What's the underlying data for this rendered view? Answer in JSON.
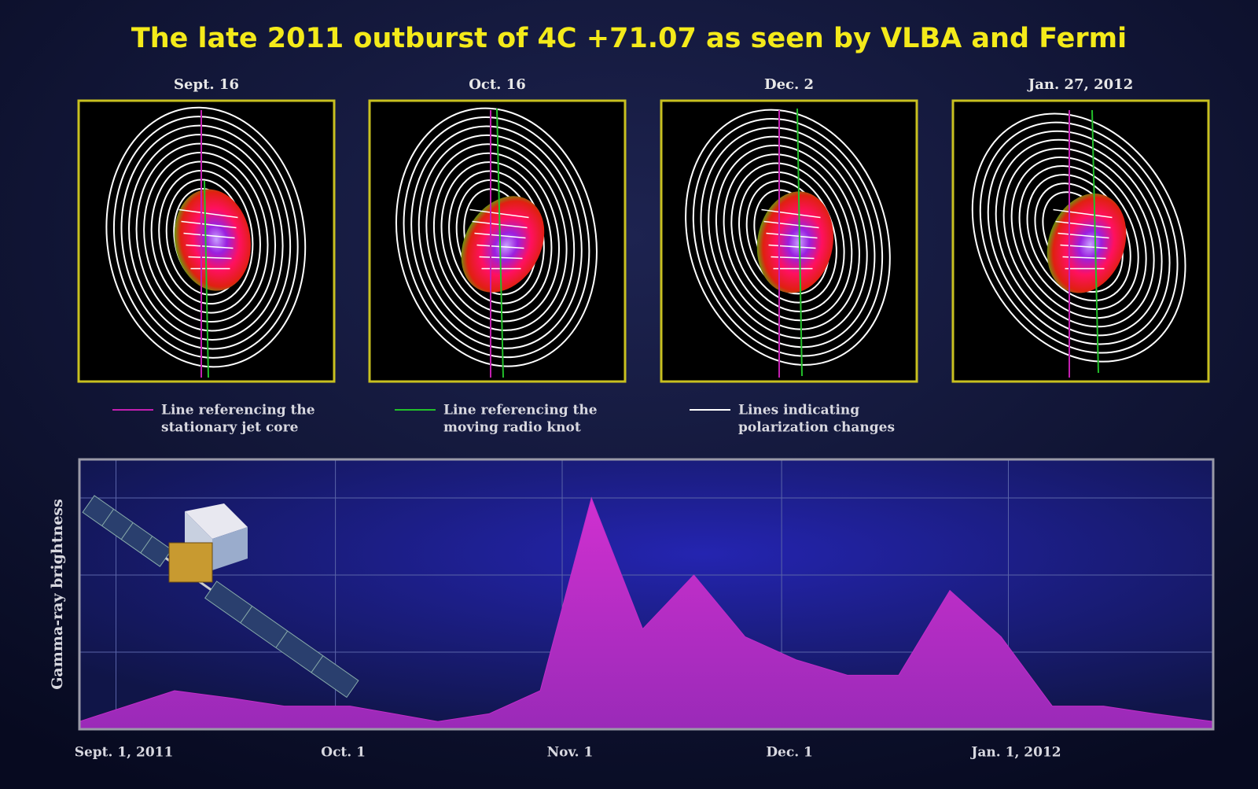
{
  "title": "The late 2011 outburst of 4C +71.07 as seen by VLBA and Fermi",
  "panels": [
    {
      "label": "Sept. 16"
    },
    {
      "label": "Oct. 16"
    },
    {
      "label": "Dec. 2"
    },
    {
      "label": "Jan. 27, 2012"
    }
  ],
  "legend": [
    {
      "lines": [
        "Line referencing the",
        "stationary jet core"
      ],
      "color": "#c21fb0"
    },
    {
      "lines": [
        "Line referencing the",
        "moving radio knot"
      ],
      "color": "#22c02a"
    },
    {
      "lines": [
        "Lines indicating",
        "polarization changes"
      ],
      "color": "#ffffff"
    }
  ],
  "chart_data": {
    "type": "area",
    "y_label": "Gamma-ray brightness",
    "color": "#c22cc8",
    "x": [
      -5,
      8,
      16,
      23,
      32,
      44,
      51,
      58,
      65,
      72,
      79,
      86,
      93,
      100,
      107,
      114,
      121,
      128,
      135,
      142,
      150
    ],
    "values": [
      0.1,
      0.5,
      0.4,
      0.3,
      0.3,
      0.1,
      0.2,
      0.5,
      3.0,
      1.3,
      2.0,
      1.2,
      0.9,
      0.7,
      0.7,
      1.8,
      1.2,
      0.3,
      0.3,
      0.2,
      0.1
    ],
    "xlim": [
      -5,
      150
    ],
    "xticks": [
      {
        "value": 0,
        "label": "Sept. 1, 2011"
      },
      {
        "value": 30,
        "label": "Oct. 1"
      },
      {
        "value": 61,
        "label": "Nov. 1"
      },
      {
        "value": 91,
        "label": "Dec. 1"
      },
      {
        "value": 122,
        "label": "Jan. 1, 2012"
      }
    ],
    "ylim": [
      0,
      3.5
    ],
    "yticks": [
      1,
      2,
      3
    ],
    "grid": true
  }
}
